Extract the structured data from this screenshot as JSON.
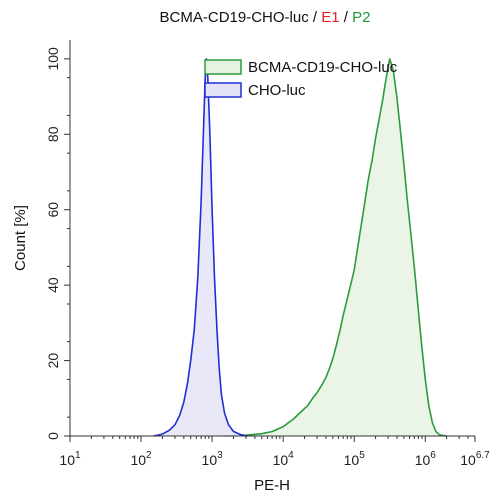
{
  "chart_data": {
    "type": "area",
    "title": {
      "main": "BCMA-CD19-CHO-luc",
      "sep1": " / ",
      "gate1": "E1",
      "sep2": " / ",
      "gate2": "P2",
      "gate1_color": "#e8202a",
      "gate2_color": "#1f9a3a"
    },
    "xlabel": "PE-H",
    "ylabel": "Count [%]",
    "x_scale": "log",
    "xlim": [
      10,
      5011872
    ],
    "ylim": [
      0,
      105
    ],
    "x_ticks": [
      {
        "base": "10",
        "exp": "1",
        "value": 10
      },
      {
        "base": "10",
        "exp": "2",
        "value": 100
      },
      {
        "base": "10",
        "exp": "3",
        "value": 1000
      },
      {
        "base": "10",
        "exp": "4",
        "value": 10000
      },
      {
        "base": "10",
        "exp": "5",
        "value": 100000
      },
      {
        "base": "10",
        "exp": "6",
        "value": 1000000
      },
      {
        "base": "10",
        "exp": "6.7",
        "value": 5011872
      }
    ],
    "y_ticks": [
      0,
      20,
      40,
      60,
      80,
      100
    ],
    "legend_position": "top-right",
    "series": [
      {
        "name": "BCMA-CD19-CHO-luc",
        "stroke": "#2e9a3e",
        "fill": "#e6f3e3",
        "points": [
          [
            1500,
            0
          ],
          [
            3000,
            0.2
          ],
          [
            5000,
            0.6
          ],
          [
            7000,
            1.2
          ],
          [
            10000,
            2.5
          ],
          [
            14000,
            4.5
          ],
          [
            18000,
            6.5
          ],
          [
            22000,
            8
          ],
          [
            26000,
            10
          ],
          [
            30000,
            11.5
          ],
          [
            35000,
            13.5
          ],
          [
            40000,
            15.5
          ],
          [
            45000,
            18
          ],
          [
            50000,
            20.5
          ],
          [
            56000,
            24
          ],
          [
            63000,
            28
          ],
          [
            70000,
            32
          ],
          [
            79000,
            36
          ],
          [
            89000,
            40
          ],
          [
            100000,
            44
          ],
          [
            112000,
            50
          ],
          [
            126000,
            56
          ],
          [
            141000,
            62
          ],
          [
            158000,
            68
          ],
          [
            178000,
            73
          ],
          [
            200000,
            79
          ],
          [
            224000,
            84
          ],
          [
            251000,
            89
          ],
          [
            282000,
            95
          ],
          [
            316000,
            100
          ],
          [
            355000,
            97
          ],
          [
            398000,
            90
          ],
          [
            447000,
            81
          ],
          [
            501000,
            72
          ],
          [
            562000,
            62
          ],
          [
            631000,
            53
          ],
          [
            708000,
            44
          ],
          [
            794000,
            34
          ],
          [
            891000,
            24
          ],
          [
            1000000,
            15
          ],
          [
            1122000,
            8
          ],
          [
            1259000,
            3.5
          ],
          [
            1412000,
            1.2
          ],
          [
            1585000,
            0.3
          ],
          [
            1995000,
            0
          ]
        ]
      },
      {
        "name": "CHO-luc",
        "stroke": "#1f2fd6",
        "fill": "#e4e4f8",
        "points": [
          [
            150,
            0
          ],
          [
            200,
            0.5
          ],
          [
            250,
            1.5
          ],
          [
            300,
            3
          ],
          [
            350,
            5.5
          ],
          [
            400,
            9
          ],
          [
            450,
            14
          ],
          [
            500,
            20
          ],
          [
            560,
            28
          ],
          [
            630,
            42
          ],
          [
            700,
            62
          ],
          [
            760,
            82
          ],
          [
            800,
            95
          ],
          [
            830,
            100
          ],
          [
            870,
            95
          ],
          [
            930,
            80
          ],
          [
            1000,
            60
          ],
          [
            1080,
            42
          ],
          [
            1170,
            28
          ],
          [
            1260,
            18
          ],
          [
            1350,
            11
          ],
          [
            1500,
            6
          ],
          [
            1700,
            3
          ],
          [
            2000,
            1.2
          ],
          [
            2500,
            0.4
          ],
          [
            3200,
            0
          ]
        ]
      }
    ]
  }
}
